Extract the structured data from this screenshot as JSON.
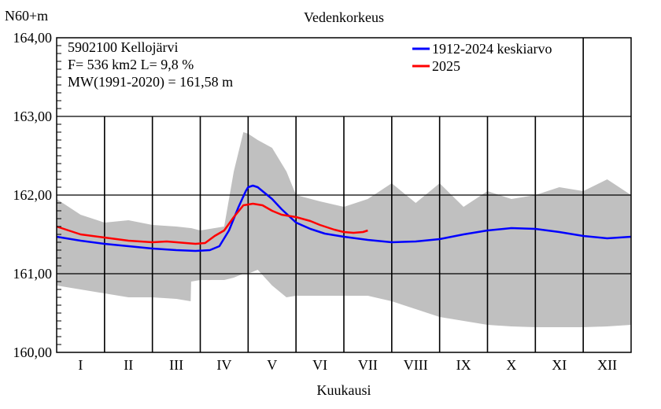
{
  "chart_data": {
    "type": "line",
    "title": "Vedenkorkeus",
    "ylabel": "N60+m",
    "xlabel": "Kuukausi",
    "ylim": [
      160.0,
      164.0
    ],
    "yticks": [
      "160,00",
      "161,00",
      "162,00",
      "163,00",
      "164,00"
    ],
    "xlim": [
      0,
      12
    ],
    "months": [
      "I",
      "II",
      "III",
      "IV",
      "V",
      "VI",
      "VII",
      "VIII",
      "IX",
      "X",
      "XI",
      "XII"
    ],
    "info_lines": [
      "5902100 Kellojärvi",
      "F=    536 km2 L=  9,8 %",
      "MW(1991-2020) = 161,58 m"
    ],
    "legend_position": "top-right",
    "grid": true,
    "range_band": {
      "color": "#c0c0c0",
      "x": [
        0,
        0.5,
        1,
        1.5,
        2,
        2.5,
        2.8,
        2.81,
        3,
        3.5,
        3.7,
        3.9,
        4.0,
        4.2,
        4.5,
        4.8,
        5.0,
        5.5,
        6.0,
        6.5,
        7.0,
        7.5,
        8.0,
        8.5,
        9.0,
        9.5,
        10.0,
        10.5,
        11.0,
        11.5,
        12.0
      ],
      "max": [
        161.95,
        161.75,
        161.65,
        161.68,
        161.62,
        161.6,
        161.58,
        161.58,
        161.55,
        161.6,
        162.3,
        162.8,
        162.78,
        162.7,
        162.6,
        162.3,
        162.0,
        161.92,
        161.85,
        161.95,
        162.15,
        161.9,
        162.15,
        161.85,
        162.05,
        161.95,
        162.0,
        162.1,
        162.05,
        162.2,
        162.0
      ],
      "min": [
        160.85,
        160.8,
        160.75,
        160.7,
        160.7,
        160.68,
        160.65,
        160.9,
        160.92,
        160.92,
        160.95,
        161.0,
        161.0,
        161.05,
        160.85,
        160.7,
        160.72,
        160.72,
        160.72,
        160.72,
        160.65,
        160.55,
        160.45,
        160.4,
        160.35,
        160.33,
        160.32,
        160.32,
        160.32,
        160.33,
        160.35
      ]
    },
    "series": [
      {
        "name": "1912-2024 keskiarvo",
        "color": "#0000ff",
        "x": [
          0,
          0.5,
          1.0,
          1.5,
          2.0,
          2.5,
          2.9,
          3.2,
          3.4,
          3.6,
          3.8,
          3.95,
          4.0,
          4.1,
          4.2,
          4.3,
          4.5,
          4.7,
          5.0,
          5.3,
          5.6,
          6.0,
          6.5,
          7.0,
          7.5,
          8.0,
          8.5,
          9.0,
          9.5,
          10.0,
          10.5,
          11.0,
          11.5,
          12.0
        ],
        "y": [
          161.47,
          161.42,
          161.38,
          161.35,
          161.32,
          161.3,
          161.29,
          161.3,
          161.35,
          161.55,
          161.85,
          162.05,
          162.1,
          162.12,
          162.1,
          162.05,
          161.95,
          161.82,
          161.65,
          161.57,
          161.51,
          161.47,
          161.43,
          161.4,
          161.41,
          161.44,
          161.5,
          161.55,
          161.58,
          161.57,
          161.53,
          161.48,
          161.45,
          161.47
        ]
      },
      {
        "name": "2025",
        "color": "#ff0000",
        "x": [
          0,
          0.5,
          1.0,
          1.5,
          2.0,
          2.3,
          2.5,
          2.7,
          2.9,
          3.1,
          3.3,
          3.5,
          3.7,
          3.9,
          4.1,
          4.3,
          4.5,
          4.7,
          5.0,
          5.3,
          5.5,
          5.8,
          6.0,
          6.2,
          6.4,
          6.5
        ],
        "y": [
          161.6,
          161.5,
          161.46,
          161.42,
          161.4,
          161.41,
          161.4,
          161.39,
          161.38,
          161.39,
          161.48,
          161.55,
          161.72,
          161.87,
          161.89,
          161.87,
          161.8,
          161.75,
          161.72,
          161.67,
          161.62,
          161.56,
          161.53,
          161.52,
          161.53,
          161.55
        ]
      }
    ]
  }
}
